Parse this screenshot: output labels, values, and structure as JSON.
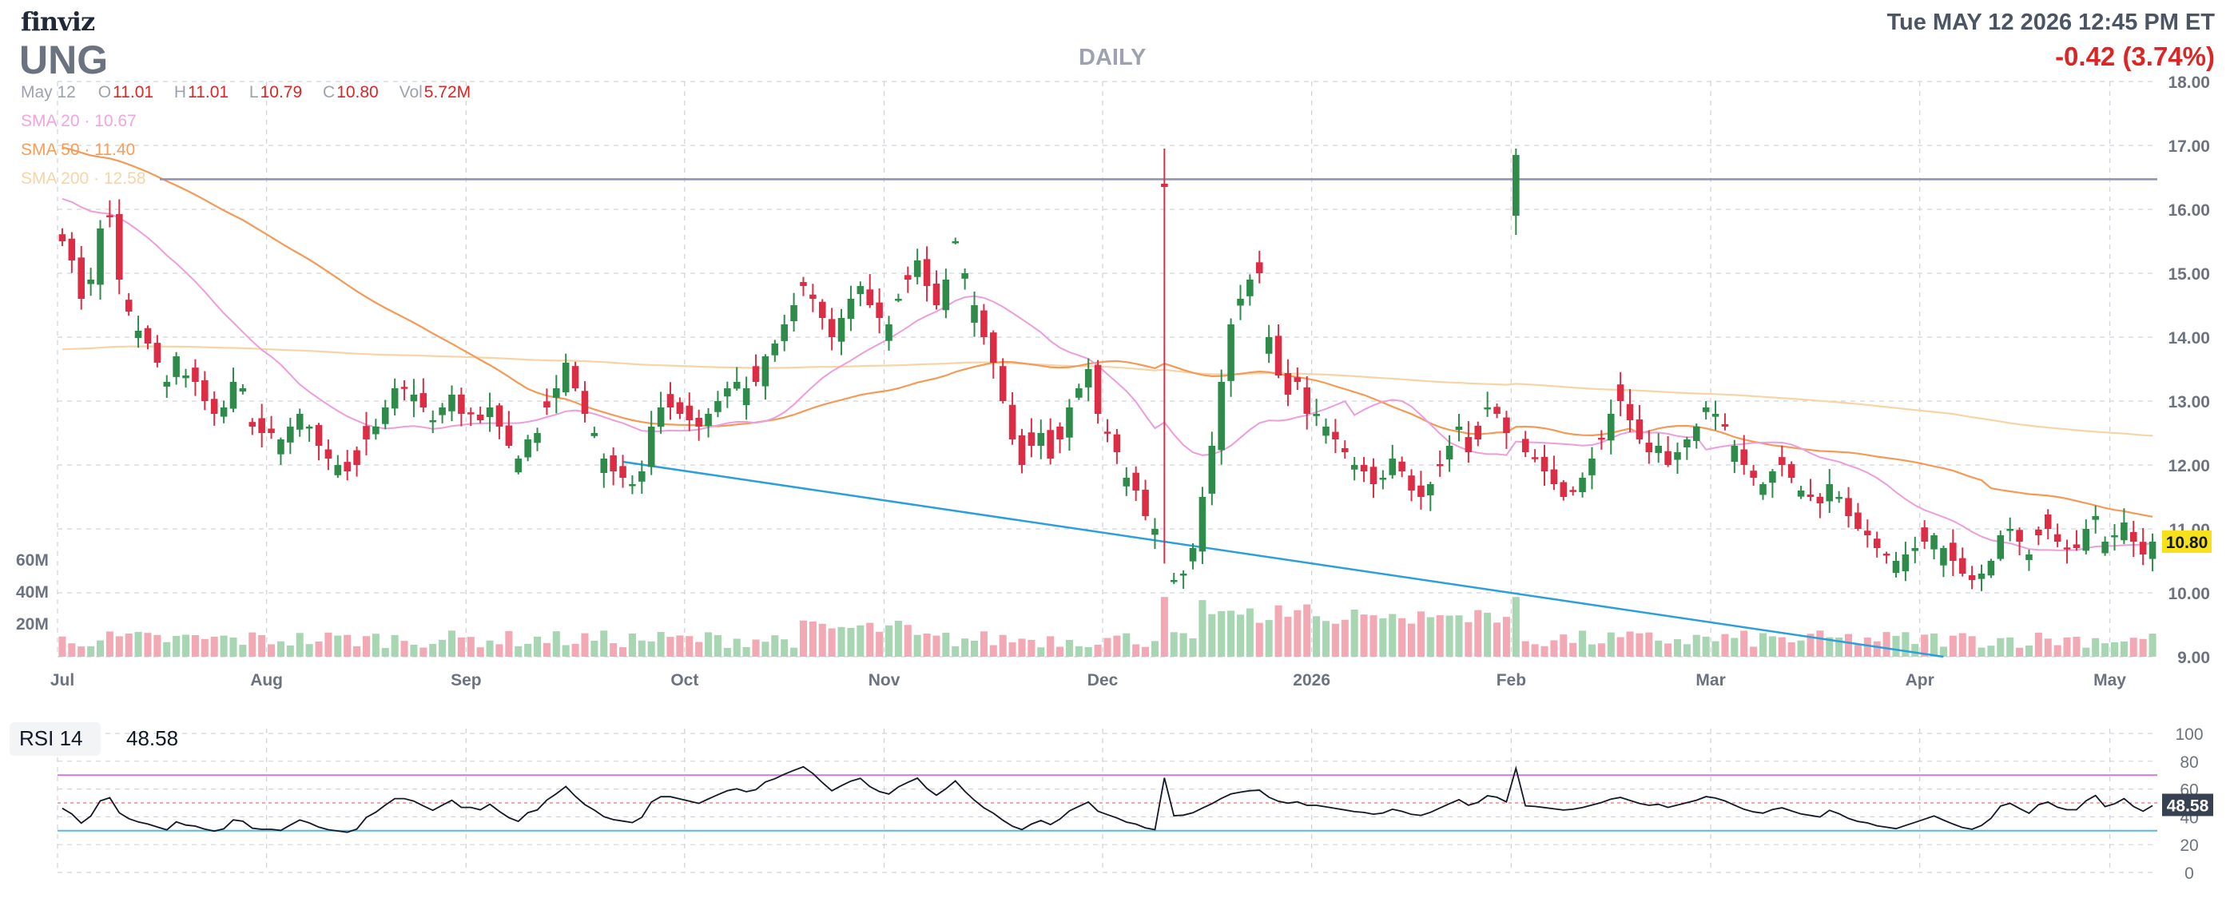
{
  "header": {
    "logo": "finviz",
    "ticker": "UNG",
    "period": "DAILY",
    "datetime": "Tue MAY 12 2026 12:45 PM ET",
    "change": "-0.42 (3.74%)",
    "ohlc": {
      "date": "May 12",
      "open_label": "O",
      "open": "11.01",
      "high_label": "H",
      "high": "11.01",
      "low_label": "L",
      "low": "10.79",
      "close_label": "C",
      "close": "10.80",
      "vol_label": "Vol",
      "vol": "5.72M"
    },
    "sma20": "SMA 20 · 10.67",
    "sma50": "SMA 50 · 11.40",
    "sma200": "SMA 200 · 12.58"
  },
  "rsi": {
    "name": "RSI 14",
    "value": "48.58"
  },
  "colors": {
    "up": "#2e8b4a",
    "down": "#dc2d45",
    "vol_up": "#a8d5b2",
    "vol_down": "#f2a9b3",
    "sma20": "#ee9ddb",
    "sma50": "#f59a56",
    "sma200": "#f6d4a6",
    "resistance": "#8e8fb5",
    "trendline": "#2b9fdc",
    "rsi_line": "#111827",
    "rsi_upper": "#c77ae0",
    "rsi_lower": "#55b8ec",
    "last_price_bg": "#f7e11b"
  },
  "chart_data": [
    {
      "type": "candlestick",
      "title": "UNG DAILY",
      "x_axis_labels": [
        "Jul",
        "Aug",
        "Sep",
        "Oct",
        "Nov",
        "Dec",
        "2026",
        "Feb",
        "Mar",
        "Apr",
        "May"
      ],
      "y_axis_ticks": [
        "18.00",
        "17.00",
        "16.00",
        "15.00",
        "14.00",
        "13.00",
        "12.00",
        "11.00",
        "10.00",
        "9.00"
      ],
      "ylim": [
        9,
        18
      ],
      "last_price": "10.80",
      "annotations": {
        "horizontal_line": 16.47,
        "trendline": {
          "start": {
            "date": "Sep 23",
            "price": 12.05
          },
          "end": {
            "date": "Apr 3",
            "price": 9.0
          }
        }
      },
      "months": [
        {
          "name": "Jul",
          "anchors": [
            15.5,
            15.2,
            14.6,
            14.9,
            15.7,
            15.9,
            14.9,
            14.4,
            14.1,
            13.9,
            13.6,
            13.3,
            13.7,
            13.4,
            13.3,
            13.0,
            12.8,
            12.9,
            13.3,
            13.2,
            12.6,
            12.5
          ]
        },
        {
          "name": "Aug",
          "anchors": [
            12.5,
            12.4,
            12.6,
            12.8,
            12.6,
            12.3,
            12.1,
            12.0,
            11.9,
            12.0,
            12.4,
            12.6,
            12.9,
            13.2,
            13.2,
            13.1,
            12.9,
            12.7,
            12.9,
            13.1,
            12.8
          ]
        },
        {
          "name": "Sep",
          "anchors": [
            12.8,
            12.7,
            12.9,
            12.6,
            12.3,
            12.1,
            12.4,
            12.5,
            12.9,
            13.2,
            13.6,
            13.2,
            12.8,
            12.5,
            12.1,
            11.9,
            11.8,
            11.7,
            11.9,
            12.6,
            12.9,
            12.9,
            12.8
          ]
        },
        {
          "name": "Oct",
          "anchors": [
            12.7,
            12.6,
            12.8,
            13.0,
            13.2,
            13.3,
            13.2,
            13.3,
            13.7,
            13.9,
            14.2,
            14.5,
            14.8,
            14.6,
            14.3,
            14.0,
            14.3,
            14.6,
            14.8,
            14.5,
            14.3
          ]
        },
        {
          "name": "Nov",
          "anchors": [
            14.2,
            14.6,
            14.9,
            15.2,
            14.8,
            14.5,
            14.9,
            15.5,
            15.0,
            14.5,
            14.0,
            13.6,
            13.0,
            12.4,
            12.0,
            12.3,
            12.5,
            12.1,
            12.4,
            12.9,
            13.2,
            13.5,
            12.8
          ]
        },
        {
          "name": "Dec",
          "anchors": [
            12.5,
            12.2,
            11.8,
            11.6,
            11.2,
            11.0,
            10.6,
            10.2,
            10.3,
            10.7,
            11.5,
            12.3,
            13.3,
            14.2,
            14.6,
            14.9,
            15.0,
            14.0,
            13.4,
            13.1,
            13.3,
            12.8
          ]
        },
        {
          "name": "2026",
          "anchors": [
            12.8,
            12.6,
            12.4,
            12.2,
            12.0,
            11.9,
            11.7,
            11.8,
            12.1,
            11.9,
            11.6,
            11.5,
            11.7,
            12.0,
            12.3,
            12.6,
            12.2,
            12.4,
            12.9,
            12.8,
            12.5
          ]
        },
        {
          "name": "Feb",
          "anchors": [
            12.4,
            12.2,
            12.1,
            11.9,
            11.7,
            11.5,
            11.6,
            11.8,
            12.1,
            12.4,
            12.8,
            13.0,
            12.7,
            12.4,
            12.2,
            12.3,
            12.0,
            12.2,
            12.4,
            12.6,
            12.9
          ]
        },
        {
          "name": "Mar",
          "anchors": [
            12.8,
            12.6,
            12.3,
            12.0,
            11.8,
            11.7,
            11.9,
            12.0,
            11.8,
            11.6,
            11.5,
            11.4,
            11.7,
            11.5,
            11.2,
            11.0,
            10.9,
            10.7,
            10.6,
            10.5,
            10.6,
            10.7
          ]
        },
        {
          "name": "Apr",
          "anchors": [
            10.8,
            10.9,
            10.7,
            10.5,
            10.3,
            10.2,
            10.3,
            10.5,
            10.9,
            11.0,
            10.8,
            10.6,
            10.9,
            11.0,
            10.8,
            10.7,
            10.7,
            11.0,
            11.2,
            10.8
          ]
        },
        {
          "name": "May",
          "anchors": [
            10.9,
            11.1,
            10.8,
            10.6,
            10.8
          ]
        }
      ],
      "volume_axis": [
        "60M",
        "40M",
        "20M"
      ]
    },
    {
      "type": "line",
      "title": "RSI 14",
      "ylim": [
        0,
        100
      ],
      "y_axis_ticks": [
        "100",
        "80",
        "60",
        "40",
        "20",
        "0"
      ],
      "reference_lines": [
        70,
        30
      ],
      "last_value": "48.58"
    }
  ]
}
